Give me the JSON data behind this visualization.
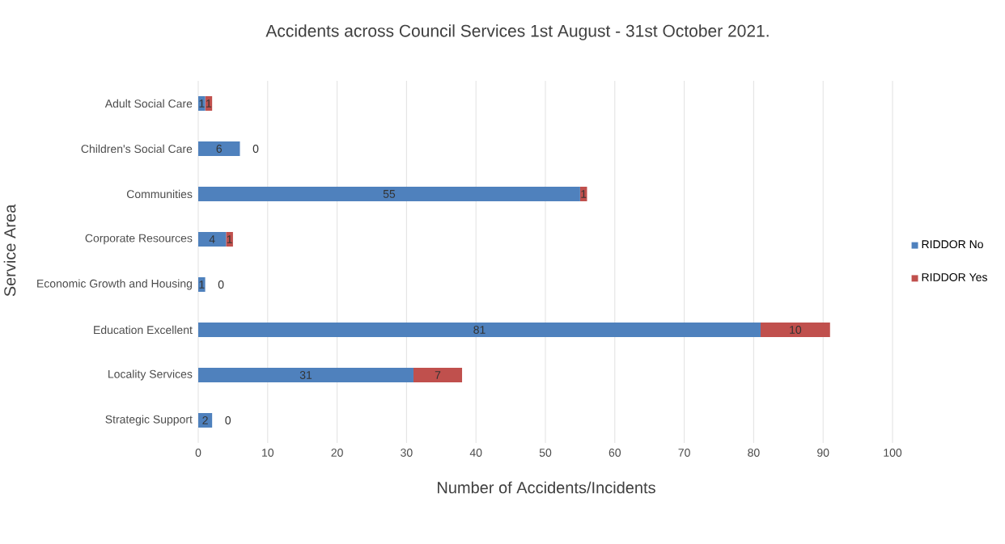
{
  "chart_data": {
    "type": "bar",
    "orientation": "horizontal",
    "stacked": true,
    "title": "Accidents across Council Services 1st August - 31st October 2021.",
    "xlabel": "Number of Accidents/Incidents",
    "ylabel": "Service Area",
    "categories": [
      "Adult Social Care",
      "Children's Social Care",
      "Communities",
      "Corporate Resources",
      "Economic Growth and Housing",
      "Education Excellent",
      "Locality Services",
      "Strategic Support"
    ],
    "series": [
      {
        "name": "RIDDOR No",
        "color": "#4f81bd",
        "values": [
          1,
          6,
          55,
          4,
          1,
          81,
          31,
          2
        ]
      },
      {
        "name": "RIDDOR Yes",
        "color": "#c0504d",
        "values": [
          1,
          0,
          1,
          1,
          0,
          10,
          7,
          0
        ]
      }
    ],
    "xlim": [
      0,
      100
    ],
    "xticks": [
      0,
      10,
      20,
      30,
      40,
      50,
      60,
      70,
      80,
      90,
      100
    ],
    "grid": "x",
    "legend": "right",
    "data_labels": true
  }
}
